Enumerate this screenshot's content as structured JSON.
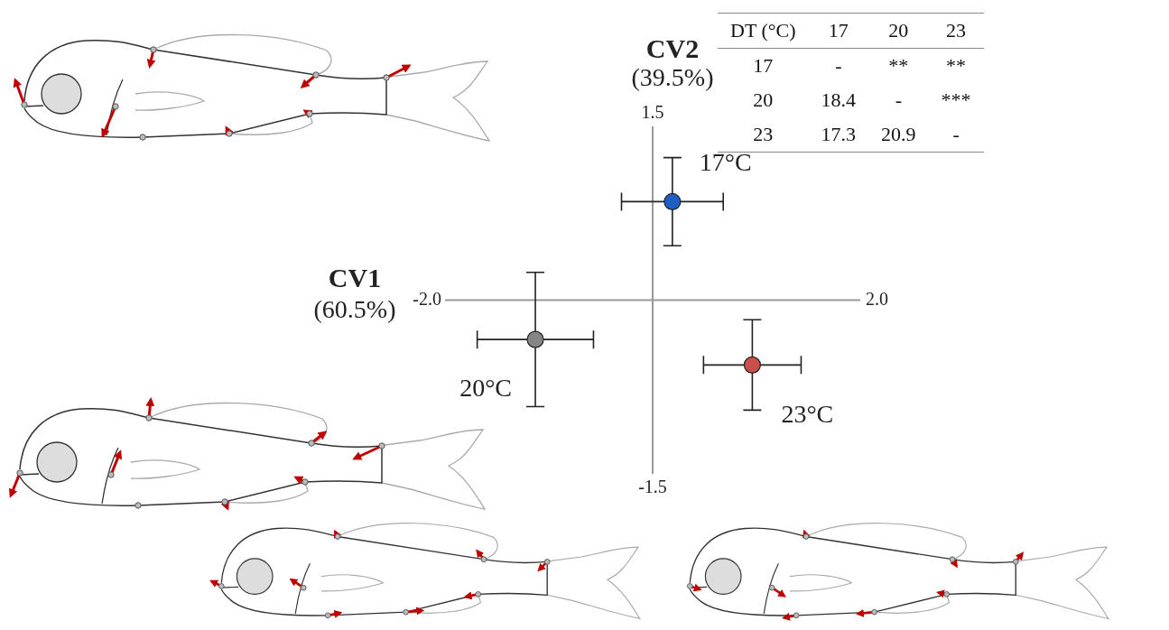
{
  "chart_data": {
    "type": "scatter",
    "x_label": [
      "CV1",
      "(60.5%)"
    ],
    "y_label": [
      "CV2",
      "(39.5%)"
    ],
    "xlim": [
      -2,
      2
    ],
    "xticks": [
      {
        "value": -2,
        "label": "-2.0"
      },
      {
        "value": 2,
        "label": "2.0"
      }
    ],
    "ylim": [
      -1.5,
      1.5
    ],
    "yticks": [
      1.5,
      -1.5
    ],
    "grid": false,
    "marker": "circle",
    "series": [
      {
        "name": "17°C",
        "color": "#1f5fc4",
        "x": [
          0.19
        ],
        "y": [
          0.85
        ],
        "x_error": [
          0.49
        ],
        "y_error": [
          0.38
        ]
      },
      {
        "name": "20°C",
        "color": "#858585",
        "x": [
          -1.13
        ],
        "y": [
          -0.34
        ],
        "x_error": [
          0.56
        ],
        "y_error": [
          0.58
        ]
      },
      {
        "name": "23°C",
        "color": "#c8504a",
        "x": [
          0.96
        ],
        "y": [
          -0.56
        ],
        "x_error": [
          0.47
        ],
        "y_error": [
          0.39
        ]
      }
    ]
  },
  "table": {
    "columns": [
      "DT (°C)",
      "17",
      "20",
      "23"
    ],
    "rows": [
      [
        "17",
        "-",
        "**",
        "**"
      ],
      [
        "20",
        "18.4",
        "-",
        "***"
      ],
      [
        "23",
        "17.3",
        "20.9",
        "-"
      ]
    ]
  }
}
